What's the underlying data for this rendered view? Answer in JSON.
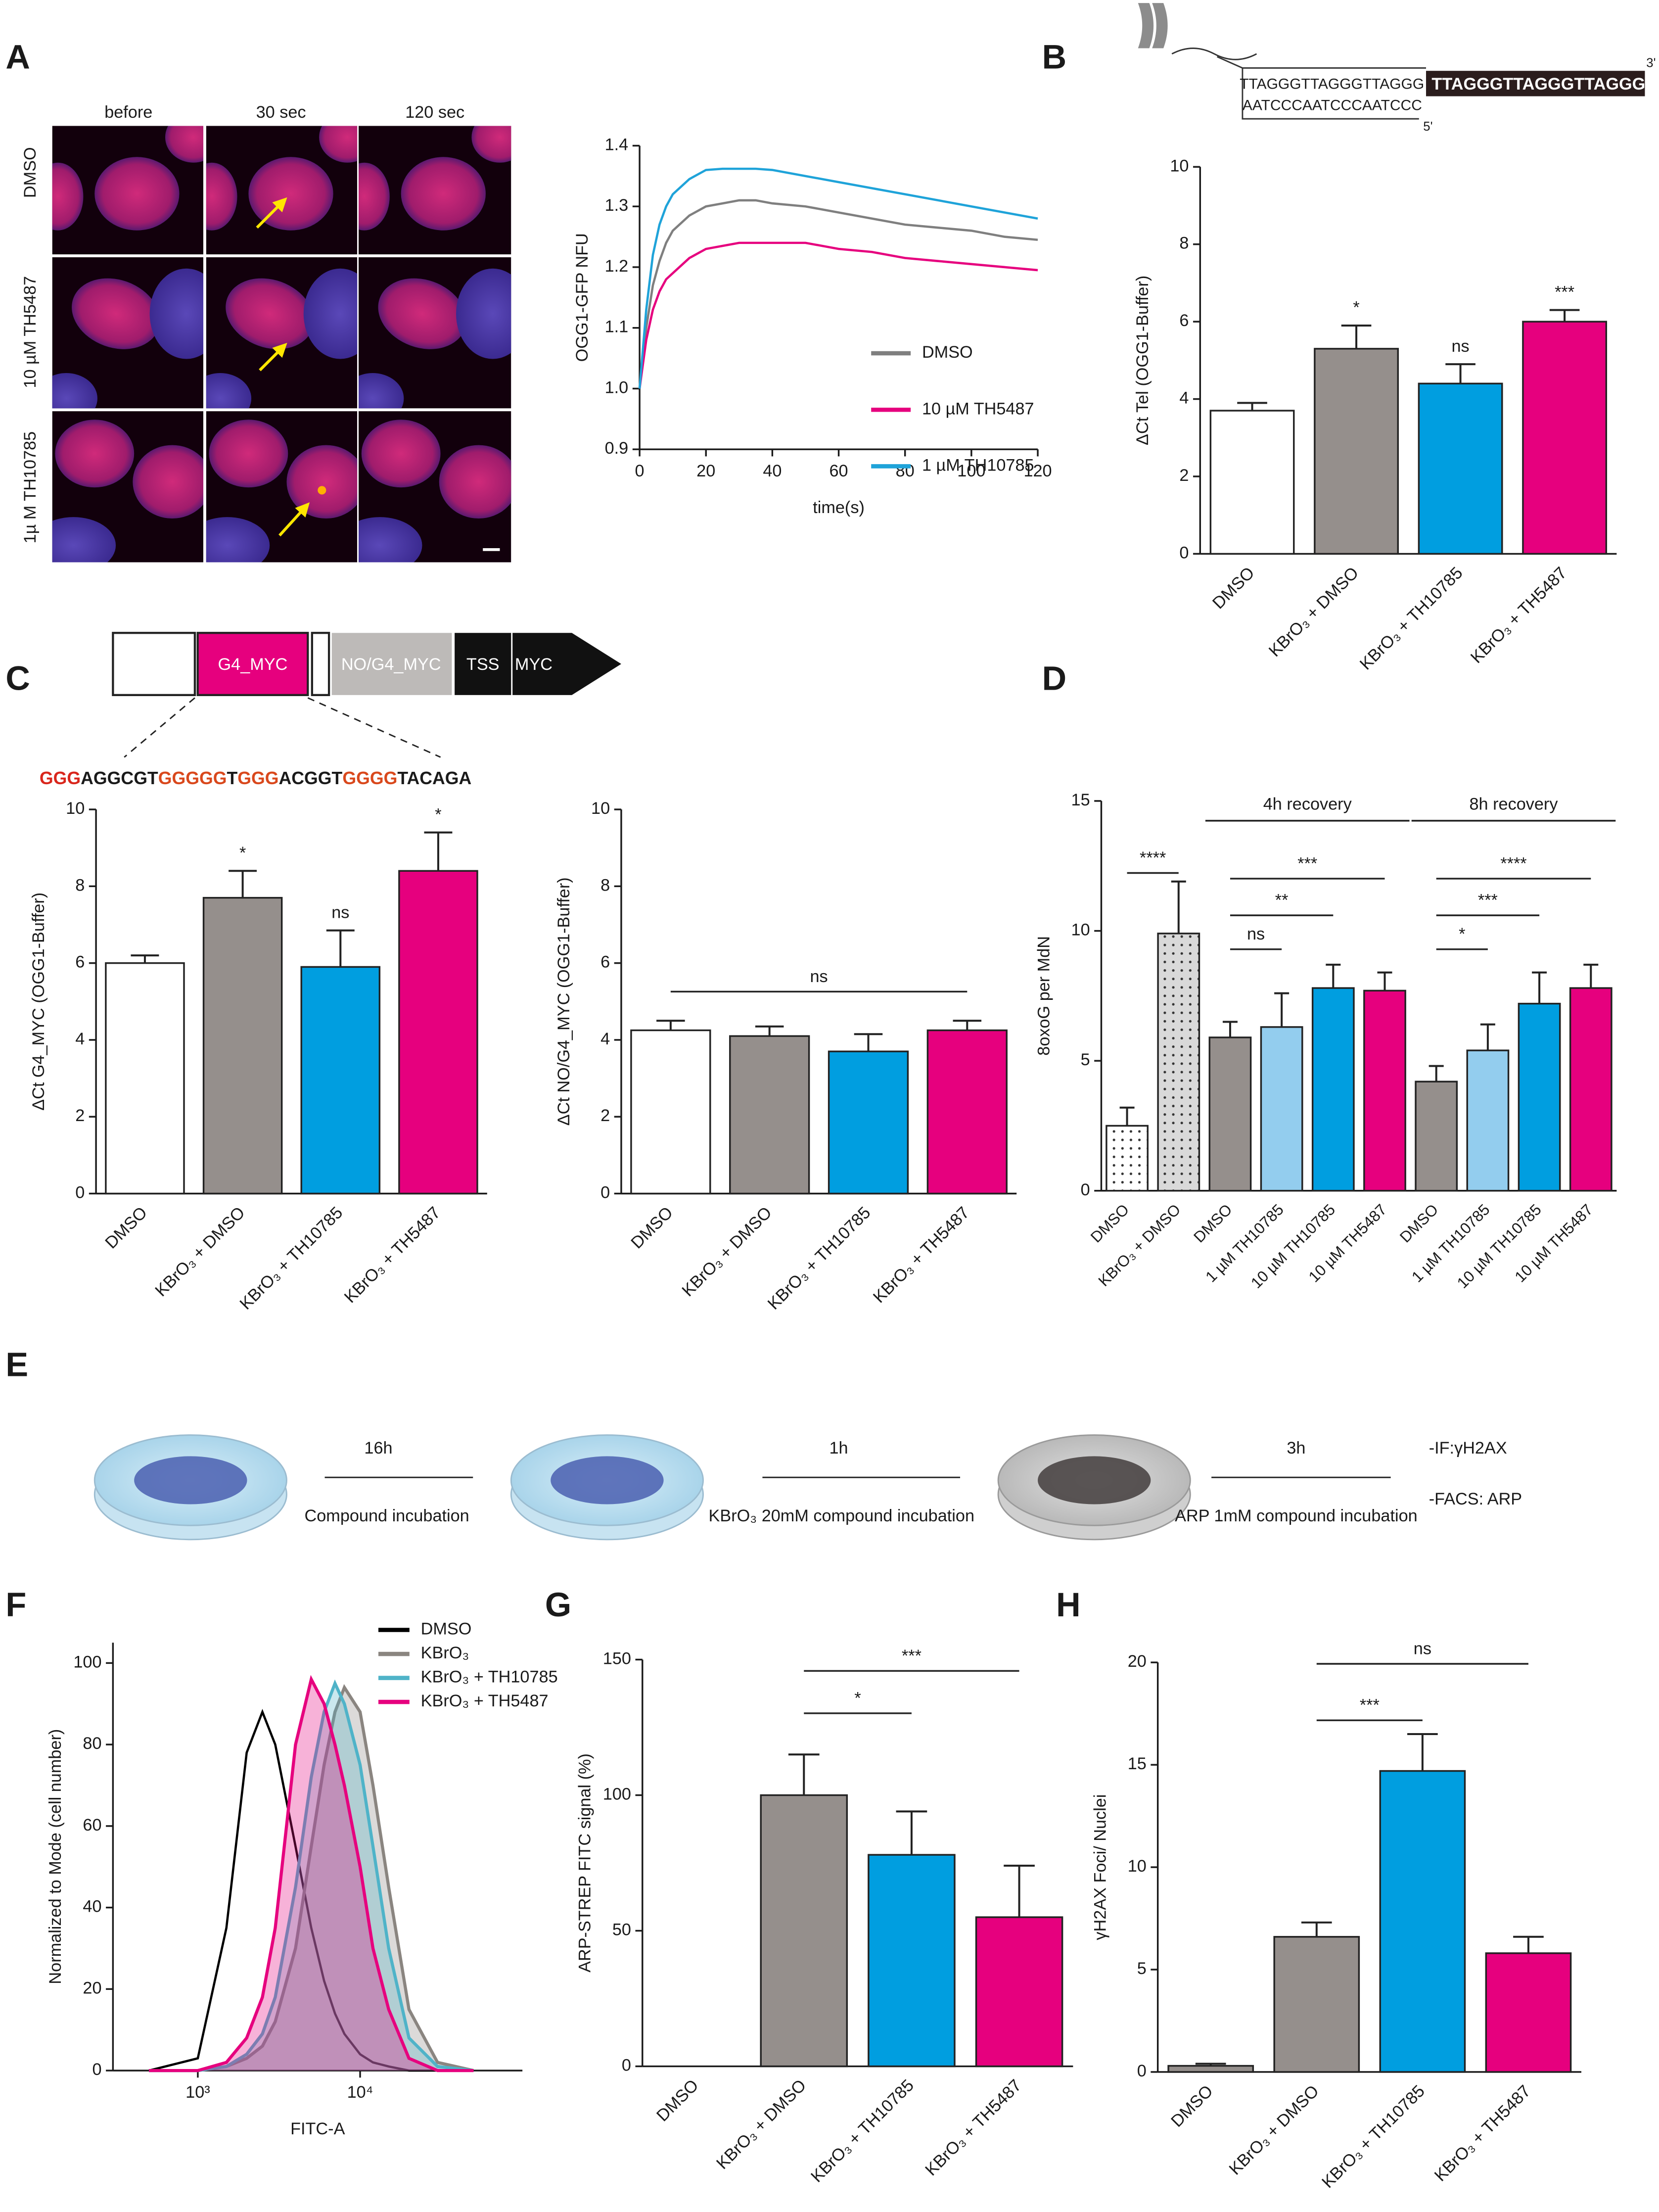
{
  "panel_labels": [
    "A",
    "B",
    "C",
    "D",
    "E",
    "F",
    "G",
    "H"
  ],
  "panel_a": {
    "columns": [
      "before",
      "30 sec",
      "120 sec"
    ],
    "rows": [
      "DMSO",
      "10 µM TH5487",
      "1µ M TH10785"
    ]
  },
  "panel_b": {
    "top_strand_thin": "TTAGGGTTAGGGTTAGGG",
    "top_strand_bold": "TTAGGGTTAGGGTTAGGG",
    "bottom_strand": "AATCCCAATCCCAATCCC",
    "end_3": "3'",
    "end_5": "5'"
  },
  "panel_c": {
    "boxes": [
      "G4_MYC",
      "NO/G4_MYC",
      "TSS",
      "MYC"
    ],
    "sequence": [
      "GGG",
      "AGGCGT",
      "GGGGG",
      "T",
      "GGG",
      "ACGGT",
      "GGGG",
      "TACAGA"
    ]
  },
  "panel_e": {
    "steps": [
      {
        "time": "16h",
        "label": "Compound incubation"
      },
      {
        "time": "1h",
        "label": "KBrO₃ 20mM compound incubation"
      },
      {
        "time": "3h",
        "label": "ARP 1mM compound incubation"
      }
    ],
    "readouts": [
      "-IF:γH2AX",
      "-FACS: ARP"
    ]
  },
  "chart_data": [
    {
      "type": "line",
      "xlabel": "time(s)",
      "ylabel": "OGG1-GFP NFU",
      "x": [
        0,
        2,
        4,
        6,
        8,
        10,
        15,
        20,
        25,
        30,
        35,
        40,
        50,
        60,
        70,
        80,
        90,
        100,
        110,
        120
      ],
      "series": [
        {
          "name": "DMSO",
          "color": "#7f7f7f",
          "values": [
            1.0,
            1.1,
            1.17,
            1.21,
            1.24,
            1.26,
            1.285,
            1.3,
            1.305,
            1.31,
            1.31,
            1.305,
            1.3,
            1.29,
            1.28,
            1.27,
            1.265,
            1.26,
            1.25,
            1.245
          ]
        },
        {
          "name": "10 µM TH5487",
          "color": "#e6007e",
          "values": [
            1.0,
            1.08,
            1.13,
            1.16,
            1.18,
            1.19,
            1.215,
            1.23,
            1.235,
            1.24,
            1.24,
            1.24,
            1.24,
            1.23,
            1.225,
            1.215,
            1.21,
            1.205,
            1.2,
            1.195
          ]
        },
        {
          "name": "1 µM TH10785",
          "color": "#1fa3d9",
          "values": [
            1.0,
            1.13,
            1.22,
            1.27,
            1.3,
            1.32,
            1.345,
            1.36,
            1.362,
            1.362,
            1.362,
            1.36,
            1.35,
            1.34,
            1.33,
            1.32,
            1.31,
            1.3,
            1.29,
            1.28
          ]
        }
      ],
      "xlim": [
        0,
        120
      ],
      "xticks": [
        0,
        20,
        40,
        60,
        80,
        100,
        120
      ],
      "ylim": [
        0.9,
        1.4
      ],
      "yticks": [
        0.9,
        {
          "value": 1,
          "label": "1.0"
        },
        1.1,
        1.2,
        1.3,
        1.4
      ]
    },
    {
      "type": "bar",
      "ylabel": "ΔCt Tel (OGG1-Buffer)",
      "categories": [
        "DMSO",
        "KBrO₃ + DMSO",
        "KBrO₃ + TH10785",
        "KBrO₃ + TH5487"
      ],
      "values": [
        3.7,
        5.3,
        4.4,
        6.0
      ],
      "errors": [
        0.2,
        0.6,
        0.5,
        0.3
      ],
      "significance": [
        null,
        "*",
        "ns",
        "***"
      ],
      "colors": [
        "#ffffff",
        "#958f8c",
        "#009ee0",
        "#e6007e"
      ],
      "ylim": [
        0,
        10
      ],
      "yticks": [
        0,
        2,
        4,
        6,
        8,
        10
      ]
    },
    {
      "type": "bar",
      "ylabel": "ΔCt G4_MYC (OGG1-Buffer)",
      "categories": [
        "DMSO",
        "KBrO₃ + DMSO",
        "KBrO₃ + TH10785",
        "KBrO₃ + TH5487"
      ],
      "values": [
        6.0,
        7.7,
        5.9,
        8.4
      ],
      "errors": [
        0.2,
        0.7,
        0.95,
        1.0
      ],
      "significance": [
        null,
        "*",
        "ns",
        "*"
      ],
      "colors": [
        "#ffffff",
        "#958f8c",
        "#009ee0",
        "#e6007e"
      ],
      "ylim": [
        0,
        10
      ],
      "yticks": [
        0,
        2,
        4,
        6,
        8,
        10
      ]
    },
    {
      "type": "bar",
      "ylabel": "ΔCt NO/G4_MYC (OGG1-Buffer)",
      "categories": [
        "DMSO",
        "KBrO₃ + DMSO",
        "KBrO₃ + TH10785",
        "KBrO₃ + TH5487"
      ],
      "values": [
        4.25,
        4.1,
        3.7,
        4.25
      ],
      "errors": [
        0.25,
        0.25,
        0.45,
        0.25
      ],
      "brackets": [
        "ns"
      ],
      "colors": [
        "#ffffff",
        "#958f8c",
        "#009ee0",
        "#e6007e"
      ],
      "ylim": [
        0,
        10
      ],
      "yticks": [
        0,
        2,
        4,
        6,
        8,
        10
      ]
    },
    {
      "type": "bar",
      "ylabel": "8oxoG per MdN",
      "categories": [
        "DMSO",
        "KBrO₃ + DMSO",
        "DMSO",
        "1 µM TH10785",
        "10 µM TH10785",
        "10 µM TH5487",
        "DMSO",
        "1 µM TH10785",
        "10 µM TH10785",
        "10 µM TH5487"
      ],
      "values": [
        2.5,
        9.9,
        5.9,
        6.3,
        7.8,
        7.7,
        4.2,
        5.4,
        7.2,
        7.8
      ],
      "errors": [
        0.7,
        2.0,
        0.6,
        1.3,
        0.9,
        0.7,
        0.6,
        1.0,
        1.2,
        0.9
      ],
      "colors": [
        "#ffffff",
        "#d9d9d9",
        "#958f8c",
        "#93cdee",
        "#009ee0",
        "#e6007e",
        "#958f8c",
        "#93cdee",
        "#009ee0",
        "#e6007e"
      ],
      "hatch": [
        "dots",
        "dots",
        null,
        null,
        null,
        null,
        null,
        null,
        null,
        null
      ],
      "groups": [
        "4h recovery",
        "8h recovery"
      ],
      "brackets": [
        "****",
        "ns",
        "**",
        "***",
        "*",
        "***",
        "****"
      ],
      "ylim": [
        0,
        15
      ],
      "yticks": [
        0,
        5,
        10,
        15
      ]
    },
    {
      "type": "line",
      "xlabel": "FITC-A",
      "ylabel": "Normalized to Mode (cell number)",
      "xscale": "log",
      "x": [
        500,
        1000,
        1500,
        2000,
        2500,
        3000,
        4000,
        5000,
        6000,
        7000,
        8000,
        10000,
        12000,
        15000,
        20000,
        30000,
        50000
      ],
      "series": [
        {
          "name": "DMSO",
          "color": "#000000",
          "area": false,
          "values": [
            0,
            3,
            35,
            78,
            88,
            80,
            55,
            35,
            22,
            14,
            9,
            4,
            2,
            1,
            0,
            0,
            0
          ]
        },
        {
          "name": "KBrO₃",
          "color": "#8a8580",
          "area": true,
          "values": [
            0,
            0,
            1,
            3,
            6,
            12,
            30,
            55,
            75,
            88,
            94,
            88,
            70,
            45,
            15,
            2,
            0
          ]
        },
        {
          "name": "KBrO₃ + TH10785",
          "color": "#4fb3c8",
          "area": true,
          "values": [
            0,
            0,
            1,
            4,
            9,
            18,
            45,
            72,
            88,
            95,
            90,
            75,
            55,
            30,
            8,
            1,
            0
          ]
        },
        {
          "name": "KBrO₃ + TH5487",
          "color": "#e6007e",
          "area": true,
          "values": [
            0,
            0,
            2,
            8,
            18,
            35,
            80,
            96,
            90,
            80,
            70,
            50,
            30,
            15,
            3,
            0,
            0
          ]
        }
      ],
      "xlim": [
        300,
        100000
      ],
      "xticks": [
        {
          "value": 1000,
          "label": "10³"
        },
        {
          "value": 10000,
          "label": "10⁴"
        }
      ],
      "ylim": [
        0,
        105
      ],
      "yticks": [
        0,
        20,
        40,
        60,
        80,
        100
      ]
    },
    {
      "type": "bar",
      "ylabel": "ARP-STREP FITC signal (%)",
      "categories": [
        "DMSO",
        "KBrO₃ + DMSO",
        "KBrO₃ + TH10785",
        "KBrO₃ + TH5487"
      ],
      "values": [
        0,
        100,
        78,
        55
      ],
      "errors": [
        null,
        15,
        16,
        19
      ],
      "brackets": [
        "*",
        "***"
      ],
      "colors": [
        "#ffffff",
        "#958f8c",
        "#009ee0",
        "#e6007e"
      ],
      "ylim": [
        0,
        150
      ],
      "yticks": [
        0,
        50,
        100,
        150
      ]
    },
    {
      "type": "bar",
      "ylabel": "γH2AX Foci/ Nuclei",
      "categories": [
        "DMSO",
        "KBrO₃ + DMSO",
        "KBrO₃ + TH10785",
        "KBrO₃ + TH5487"
      ],
      "values": [
        0.3,
        6.6,
        14.7,
        5.8
      ],
      "errors": [
        0.1,
        0.7,
        1.8,
        0.8
      ],
      "brackets": [
        "***",
        "ns"
      ],
      "colors": [
        "#958f8c",
        "#958f8c",
        "#009ee0",
        "#e6007e"
      ],
      "ylim": [
        0,
        20
      ],
      "yticks": [
        0,
        5,
        10,
        15,
        20
      ]
    }
  ]
}
